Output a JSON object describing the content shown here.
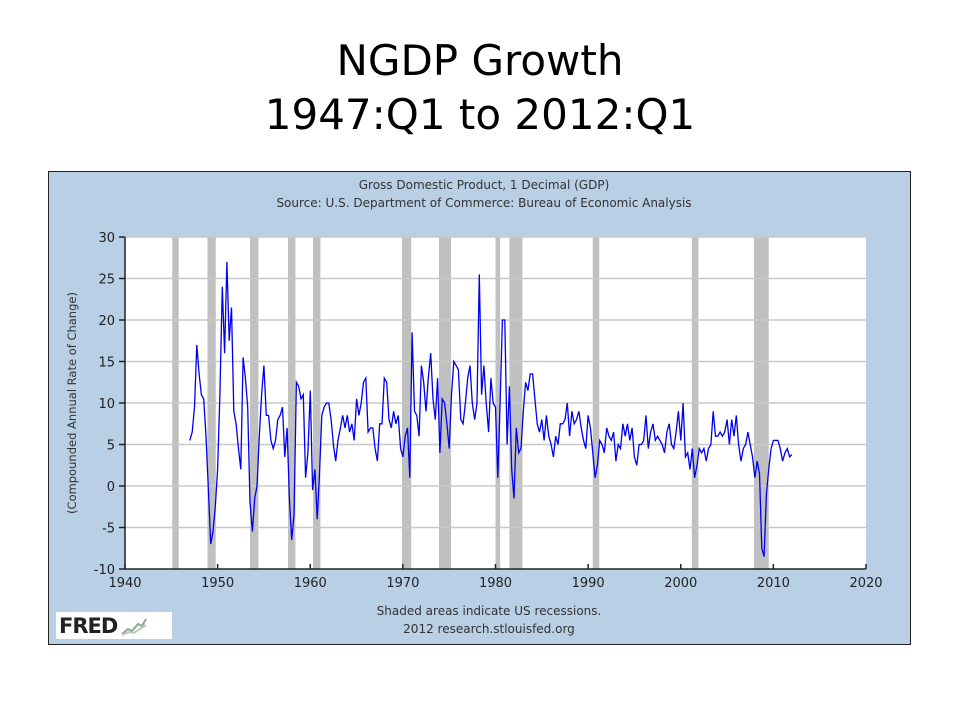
{
  "slide": {
    "title_line1": "NGDP Growth",
    "title_line2": "1947:Q1 to 2012:Q1"
  },
  "colors": {
    "line": "#0000ee",
    "recession": "#c0c0c0",
    "frame_bg": "#b8cfe6",
    "grid": "#c8c8c8"
  },
  "logo": {
    "text": "FRED"
  },
  "chart_data": {
    "type": "line",
    "title": "Gross Domestic Product, 1 Decimal (GDP)",
    "subtitle": "Source: U.S. Department of Commerce: Bureau of Economic Analysis",
    "ylabel": "(Compounded Annual Rate of Change)",
    "xlabel": "",
    "note1": "Shaded areas indicate US recessions.",
    "note2": "2012 research.stlouisfed.org",
    "xlim": [
      1940,
      2020
    ],
    "ylim": [
      -10,
      30
    ],
    "xticks": [
      1940,
      1950,
      1960,
      1970,
      1980,
      1990,
      2000,
      2010,
      2020
    ],
    "yticks": [
      -10,
      -5,
      0,
      5,
      10,
      15,
      20,
      25,
      30
    ],
    "grid": true,
    "start": 1947.0,
    "frequency": "quarterly",
    "series": [
      {
        "name": "GDP percent change, compounded annual rate",
        "values": [
          5.5,
          6.5,
          9.5,
          17.0,
          13.5,
          11,
          10.5,
          6,
          -0.5,
          -7,
          -5.5,
          -2.5,
          2,
          11,
          24,
          16,
          27,
          17.5,
          21.5,
          9,
          7.5,
          4.5,
          2,
          15.5,
          13,
          9.5,
          -2,
          -5.5,
          -1.5,
          0,
          6,
          11,
          14.5,
          8.5,
          8.5,
          5.5,
          4.5,
          5.5,
          8,
          8.5,
          9.5,
          3.5,
          7,
          -1.5,
          -6.5,
          -3.5,
          12.5,
          12,
          10.5,
          11,
          1,
          4,
          11.5,
          -0.5,
          2,
          -4,
          1.5,
          8.5,
          9.5,
          10,
          10,
          8,
          5,
          3,
          5.5,
          7,
          8.5,
          7,
          8.5,
          6.5,
          7.5,
          5.5,
          10.5,
          8.5,
          10,
          12.5,
          13,
          6.5,
          7,
          7,
          4.5,
          3,
          7.5,
          7.5,
          13,
          12.5,
          8,
          7,
          9,
          7.5,
          8.5,
          4.5,
          3.5,
          6,
          7,
          1,
          18.5,
          9,
          8.5,
          6,
          14.5,
          12.5,
          9,
          13,
          16,
          10.5,
          8,
          13,
          4,
          10.5,
          10,
          7.5,
          4.5,
          11,
          15,
          14.5,
          14,
          8,
          7.5,
          10,
          13,
          14.5,
          10,
          8,
          10,
          25.5,
          11,
          14.5,
          10,
          6.5,
          13,
          10,
          9.5,
          1,
          10,
          20,
          20,
          5,
          12,
          2,
          -1.5,
          7,
          4,
          4.5,
          9,
          12.5,
          11.5,
          13.5,
          13.5,
          10.5,
          7.5,
          6.5,
          8,
          5.5,
          8.5,
          6,
          5,
          3.5,
          6,
          5,
          7.5,
          7.5,
          8,
          10,
          6,
          9,
          7.5,
          8,
          9,
          7,
          5.5,
          4.5,
          8.5,
          7,
          4,
          1,
          2.5,
          5.5,
          5,
          4,
          7,
          6,
          5.5,
          6.5,
          3,
          5,
          4.5,
          7.5,
          6,
          7.5,
          5.5,
          7,
          3.5,
          2.5,
          5,
          5,
          5.5,
          8.5,
          4.5,
          6.5,
          7.5,
          5.5,
          6,
          5.5,
          5,
          4,
          6.5,
          7.5,
          5,
          4.5,
          6.5,
          9,
          5.5,
          10,
          3.5,
          4,
          2,
          4.5,
          1,
          2.5,
          4.5,
          4,
          4.5,
          3,
          4.5,
          5,
          9,
          6,
          6,
          6.5,
          6,
          6.5,
          8,
          5,
          8,
          6,
          8.5,
          5,
          3,
          4.5,
          5,
          6.5,
          5,
          3.5,
          1,
          3,
          1.5,
          -7.5,
          -8.5,
          -1,
          2,
          4.5,
          5.5,
          5.5,
          5.5,
          4.5,
          3,
          4,
          4.5,
          3.5,
          3.8
        ]
      }
    ],
    "recessions": [
      [
        1945.1,
        1945.8
      ],
      [
        1948.9,
        1949.8
      ],
      [
        1953.5,
        1954.4
      ],
      [
        1957.6,
        1958.4
      ],
      [
        1960.3,
        1961.1
      ],
      [
        1969.9,
        1970.9
      ],
      [
        1973.9,
        1975.2
      ],
      [
        1980.0,
        1980.5
      ],
      [
        1981.5,
        1982.9
      ],
      [
        1990.5,
        1991.2
      ],
      [
        2001.2,
        2001.9
      ],
      [
        2007.9,
        2009.5
      ]
    ]
  }
}
